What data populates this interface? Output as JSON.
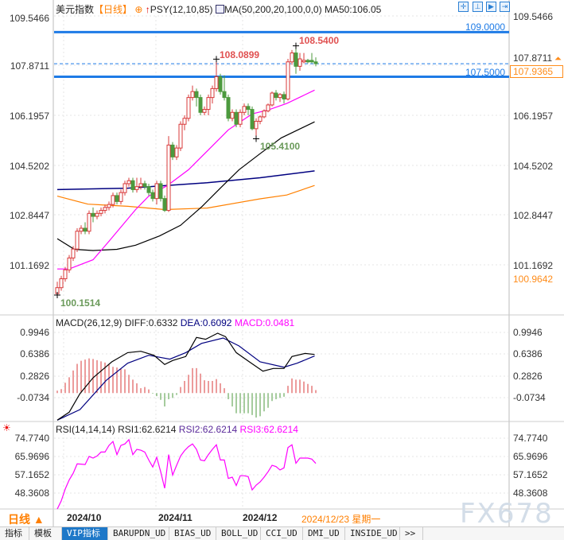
{
  "header": {
    "symbol": "美元指数",
    "period": "【日线】",
    "psy": "PSY(12,10,85)",
    "ma": "MA(50,200,20,100,0,0)",
    "ma50": "MA50:106.05",
    "toolbar_icons": [
      "crosshair-icon",
      "fit-range-icon",
      "play-icon",
      "exit-icon"
    ]
  },
  "price_axis": {
    "labels": [
      "109.5466",
      "107.8711",
      "106.1957",
      "104.5202",
      "102.8447",
      "101.1692"
    ],
    "current_price": "107.9365",
    "extra_label": "100.9642"
  },
  "hlines": [
    {
      "label": "109.0000",
      "value": 109.0,
      "color": "#1e7be6"
    },
    {
      "label": "107.5000",
      "value": 107.5,
      "color": "#1e7be6"
    }
  ],
  "extremes": {
    "high": "108.5400",
    "peak1": "108.0899",
    "low1": "105.4100",
    "low": "100.1514"
  },
  "colors": {
    "up": "#d9393a",
    "down": "#4c9a3e",
    "ma50": "#000000",
    "ma200": "#000080",
    "ma20": "#ff00ff",
    "ma100": "#ff8000",
    "accent": "#ff7f00"
  },
  "candles_ohlc": [
    [
      100.2,
      100.6,
      100.15,
      100.4
    ],
    [
      100.4,
      100.8,
      100.3,
      100.7
    ],
    [
      100.7,
      101.1,
      100.6,
      101.0
    ],
    [
      101.0,
      101.5,
      100.9,
      101.4
    ],
    [
      101.4,
      101.8,
      101.3,
      101.7
    ],
    [
      101.7,
      102.4,
      101.6,
      102.3
    ],
    [
      102.3,
      102.5,
      102.2,
      102.4
    ],
    [
      102.4,
      102.6,
      102.2,
      102.3
    ],
    [
      102.3,
      103.0,
      102.2,
      102.9
    ],
    [
      102.9,
      103.1,
      102.6,
      102.8
    ],
    [
      102.8,
      103.0,
      102.7,
      102.9
    ],
    [
      102.9,
      103.1,
      102.8,
      103.0
    ],
    [
      103.0,
      103.2,
      102.9,
      103.1
    ],
    [
      103.1,
      103.3,
      103.0,
      103.2
    ],
    [
      103.2,
      103.6,
      103.1,
      103.5
    ],
    [
      103.5,
      103.6,
      103.2,
      103.3
    ],
    [
      103.3,
      103.7,
      103.2,
      103.6
    ],
    [
      103.6,
      104.0,
      103.5,
      103.9
    ],
    [
      103.9,
      104.1,
      103.8,
      104.0
    ],
    [
      104.0,
      104.1,
      103.6,
      103.7
    ],
    [
      103.7,
      104.1,
      103.6,
      103.8
    ],
    [
      103.8,
      104.1,
      103.7,
      103.9
    ],
    [
      103.9,
      104.0,
      103.7,
      103.8
    ],
    [
      103.8,
      103.9,
      103.5,
      103.6
    ],
    [
      103.6,
      103.7,
      103.3,
      103.4
    ],
    [
      103.4,
      104.0,
      103.2,
      103.9
    ],
    [
      103.9,
      104.0,
      103.3,
      103.4
    ],
    [
      103.4,
      103.5,
      102.95,
      103.0
    ],
    [
      103.0,
      105.5,
      102.95,
      105.2
    ],
    [
      105.2,
      105.3,
      104.7,
      104.8
    ],
    [
      104.8,
      105.2,
      104.7,
      105.1
    ],
    [
      105.1,
      106.0,
      105.0,
      105.9
    ],
    [
      105.9,
      106.2,
      105.7,
      106.1
    ],
    [
      106.1,
      106.9,
      106.0,
      106.8
    ],
    [
      106.8,
      107.2,
      106.7,
      107.0
    ],
    [
      107.0,
      107.1,
      106.5,
      106.8
    ],
    [
      106.8,
      106.9,
      106.2,
      106.3
    ],
    [
      106.3,
      106.5,
      106.2,
      106.4
    ],
    [
      106.4,
      106.9,
      106.2,
      106.8
    ],
    [
      106.8,
      107.2,
      106.6,
      107.1
    ],
    [
      107.1,
      108.09,
      107.0,
      107.5
    ],
    [
      107.5,
      107.6,
      106.9,
      107.0
    ],
    [
      107.0,
      107.55,
      106.7,
      106.8
    ],
    [
      106.8,
      106.9,
      106.0,
      106.1
    ],
    [
      106.1,
      106.4,
      106.0,
      106.3
    ],
    [
      106.3,
      106.4,
      105.8,
      105.9
    ],
    [
      105.9,
      106.4,
      105.8,
      106.3
    ],
    [
      106.3,
      106.6,
      106.2,
      106.5
    ],
    [
      106.5,
      106.6,
      106.2,
      106.4
    ],
    [
      106.4,
      106.5,
      105.7,
      105.75
    ],
    [
      105.75,
      106.1,
      105.41,
      106.0
    ],
    [
      106.0,
      106.2,
      105.9,
      106.15
    ],
    [
      106.15,
      106.4,
      106.1,
      106.35
    ],
    [
      106.35,
      106.6,
      106.3,
      106.55
    ],
    [
      106.55,
      107.0,
      106.5,
      106.95
    ],
    [
      106.95,
      107.05,
      106.7,
      106.8
    ],
    [
      106.8,
      106.95,
      106.65,
      106.9
    ],
    [
      106.9,
      107.0,
      106.6,
      106.75
    ],
    [
      106.75,
      108.1,
      106.7,
      108.0
    ],
    [
      108.0,
      108.4,
      107.9,
      108.3
    ],
    [
      108.3,
      108.54,
      107.6,
      107.85
    ],
    [
      107.85,
      108.3,
      107.7,
      108.1
    ],
    [
      108.0,
      108.3,
      107.95,
      108.05
    ],
    [
      108.05,
      108.1,
      107.95,
      108.0
    ],
    [
      108.05,
      108.3,
      107.95,
      108.0
    ],
    [
      108.0,
      108.15,
      107.85,
      107.94
    ]
  ],
  "ma_lines": {
    "ma20": {
      "idx": [
        0,
        3,
        9,
        13,
        19.7,
        23,
        27.7,
        33,
        37.7,
        43,
        49,
        53,
        57.7,
        64.7
      ],
      "val": [
        101.03,
        101.03,
        101.34,
        101.96,
        103.03,
        103.48,
        103.84,
        104.37,
        105.0,
        105.71,
        106.25,
        106.38,
        106.6,
        107.05
      ]
    },
    "ma50": {
      "idx": [
        0,
        4.3,
        9,
        15,
        19.7,
        25.7,
        31,
        36.3,
        41,
        45.7,
        51,
        56.3,
        64.7
      ],
      "val": [
        102.05,
        101.69,
        101.65,
        101.69,
        101.83,
        102.14,
        102.5,
        103.12,
        103.75,
        104.37,
        104.91,
        105.44,
        105.98
      ]
    },
    "ma200": {
      "idx": [
        0,
        17.7,
        37.7,
        51,
        64.7
      ],
      "val": [
        103.7,
        103.75,
        103.93,
        104.1,
        104.33
      ]
    },
    "ma100": {
      "idx": [
        0,
        7.7,
        17.7,
        27,
        37.7,
        51,
        57.7,
        64.7
      ],
      "val": [
        103.48,
        103.21,
        103.14,
        103.03,
        103.08,
        103.39,
        103.52,
        103.84
      ]
    }
  },
  "macd": {
    "title": "MACD(26,12,9)",
    "diff": "DIFF:0.6332",
    "dea": "DEA:0.6092",
    "macd": "MACD:0.0481",
    "axis_labels": [
      "0.9946",
      "0.6386",
      "0.2826",
      "-0.0734"
    ],
    "hist": [
      0.04,
      0.065,
      0.17,
      0.26,
      0.37,
      0.48,
      0.53,
      0.55,
      0.57,
      0.56,
      0.54,
      0.52,
      0.5,
      0.47,
      0.43,
      0.42,
      0.4,
      0.39,
      0.3,
      0.22,
      0.16,
      0.08,
      0.1,
      0.06,
      -0.01,
      -0.05,
      -0.11,
      -0.22,
      -0.1,
      -0.08,
      -0.03,
      0.1,
      0.2,
      0.3,
      0.41,
      0.41,
      0.32,
      0.21,
      0.2,
      0.2,
      0.23,
      0.16,
      0.08,
      -0.1,
      -0.22,
      -0.33,
      -0.33,
      -0.33,
      -0.33,
      -0.36,
      -0.4,
      -0.38,
      -0.3,
      -0.24,
      -0.13,
      -0.1,
      -0.08,
      -0.06,
      0.12,
      0.24,
      0.22,
      0.22,
      0.19,
      0.15,
      0.12,
      0.05
    ],
    "diff_line": {
      "idx": [
        0,
        3,
        5.7,
        9,
        13.7,
        17.7,
        21,
        24.3,
        27,
        29,
        32.3,
        35,
        37.3,
        40.3,
        42.3,
        45,
        48.3,
        51.7,
        54.3,
        57,
        59,
        62.3,
        64.7
      ],
      "val": [
        -0.444,
        -0.313,
        -0.009,
        0.251,
        0.512,
        0.664,
        0.686,
        0.621,
        0.469,
        0.534,
        0.599,
        0.912,
        0.882,
        0.982,
        0.925,
        0.664,
        0.512,
        0.36,
        0.404,
        0.404,
        0.599,
        0.651,
        0.633
      ]
    },
    "dea_line": {
      "idx": [
        0,
        5.7,
        12.3,
        17.7,
        23,
        28.3,
        32.3,
        36.3,
        41.7,
        45.7,
        51,
        57,
        60.3,
        64.7
      ],
      "val": [
        -0.444,
        -0.27,
        0.208,
        0.49,
        0.621,
        0.556,
        0.664,
        0.816,
        0.903,
        0.773,
        0.512,
        0.425,
        0.49,
        0.609
      ]
    }
  },
  "rsi": {
    "title": "RSI(14,14,14)",
    "rsi1": "RSI1:62.6214",
    "rsi2": "RSI2:62.6214",
    "rsi3": "RSI3:62.6214",
    "axis_labels": [
      "74.7740",
      "65.9696",
      "57.1652",
      "48.3608"
    ],
    "values": [
      40.7,
      44.6,
      50.3,
      54.7,
      57.9,
      62.4,
      62.3,
      62.1,
      66.0,
      65.2,
      66.2,
      68.1,
      68.1,
      71.3,
      73.2,
      66.9,
      71.3,
      72.0,
      74.1,
      66.9,
      69.4,
      69.0,
      68.1,
      64.3,
      60.9,
      65.6,
      58.6,
      50.7,
      66.9,
      57.0,
      61.7,
      66.2,
      68.8,
      70.7,
      72.0,
      69.4,
      64.3,
      63.9,
      66.9,
      69.4,
      71.6,
      64.3,
      64.3,
      55.4,
      56.0,
      52.0,
      56.7,
      56.7,
      56.3,
      49.9,
      52.2,
      53.7,
      56.0,
      58.6,
      61.7,
      61.1,
      59.5,
      60.5,
      70.3,
      71.6,
      62.7,
      65.2,
      65.2,
      65.2,
      64.7,
      62.62
    ]
  },
  "date_axis": {
    "period_label": "日线 ▲",
    "dates": [
      "2024/10",
      "2024/11",
      "2024/12"
    ],
    "cursor_date": "2024/12/23 星期一"
  },
  "watermark": "FX678",
  "tabs": [
    {
      "label": "指标",
      "active": false
    },
    {
      "label": "模板",
      "active": false
    },
    {
      "label": "VIP指标",
      "active": true
    },
    {
      "label": "BARUPDN_UD",
      "active": false
    },
    {
      "label": "BIAS_UD",
      "active": false
    },
    {
      "label": "BOLL_UD",
      "active": false
    },
    {
      "label": "CCI_UD",
      "active": false
    },
    {
      "label": "DMI_UD",
      "active": false
    },
    {
      "label": "INSIDE_UD",
      "active": false
    },
    {
      "label": ">>",
      "active": false
    }
  ]
}
